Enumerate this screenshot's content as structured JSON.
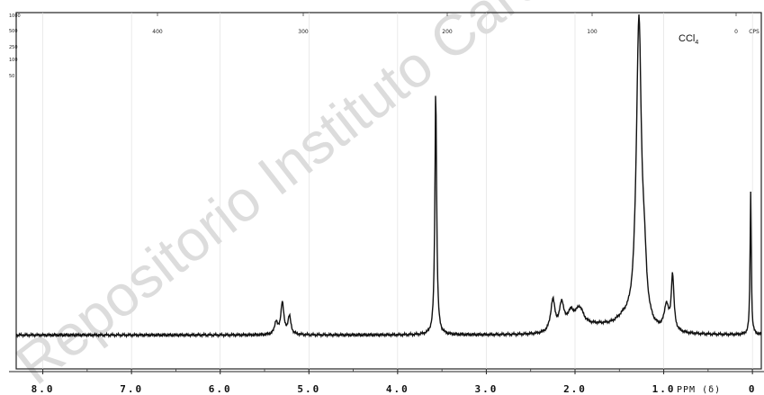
{
  "chart_data": {
    "type": "line",
    "xlabel": "PPM (δ)",
    "x_reversed": true,
    "xlim": [
      8.3,
      -0.1
    ],
    "ylim": [
      0,
      100
    ],
    "x_ticks": [
      8.0,
      7.0,
      6.0,
      5.0,
      4.0,
      3.0,
      2.0,
      1.0,
      0
    ],
    "x_tick_labels": [
      "8.0",
      "7.0",
      "6.0",
      "5.0",
      "4.0",
      "3.0",
      "2.0",
      "1.0",
      "0"
    ],
    "top_scale_ticks": [
      "400",
      "300",
      "200",
      "100",
      "0"
    ],
    "top_scale_unit": "CPS",
    "left_scale_labels": [
      "1000",
      "500",
      "250",
      "100",
      "50"
    ],
    "annotation": "CCl",
    "annotation_subscript": "4",
    "series": [
      {
        "color": "#111111",
        "baseline": 9.5,
        "peaks": [
          {
            "ppm": 5.37,
            "height": 3.5,
            "width": 0.02
          },
          {
            "ppm": 5.3,
            "height": 9.0,
            "width": 0.02
          },
          {
            "ppm": 5.22,
            "height": 5.0,
            "width": 0.02
          },
          {
            "ppm": 3.57,
            "height": 69.0,
            "width": 0.012
          },
          {
            "ppm": 2.25,
            "height": 9.0,
            "width": 0.03
          },
          {
            "ppm": 2.15,
            "height": 7.5,
            "width": 0.03
          },
          {
            "ppm": 2.05,
            "height": 4.5,
            "width": 0.05
          },
          {
            "ppm": 1.95,
            "height": 5.5,
            "width": 0.06
          },
          {
            "ppm": 1.45,
            "height": 3.0,
            "width": 0.12
          },
          {
            "ppm": 1.28,
            "height": 86.0,
            "width": 0.035
          },
          {
            "ppm": 1.22,
            "height": 12.0,
            "width": 0.03
          },
          {
            "ppm": 0.97,
            "height": 7.0,
            "width": 0.03
          },
          {
            "ppm": 0.9,
            "height": 15.5,
            "width": 0.018
          },
          {
            "ppm": 0.02,
            "height": 40.0,
            "width": 0.008
          }
        ]
      }
    ]
  },
  "watermark": "Repositorio Instituto Caro y Cuervo"
}
